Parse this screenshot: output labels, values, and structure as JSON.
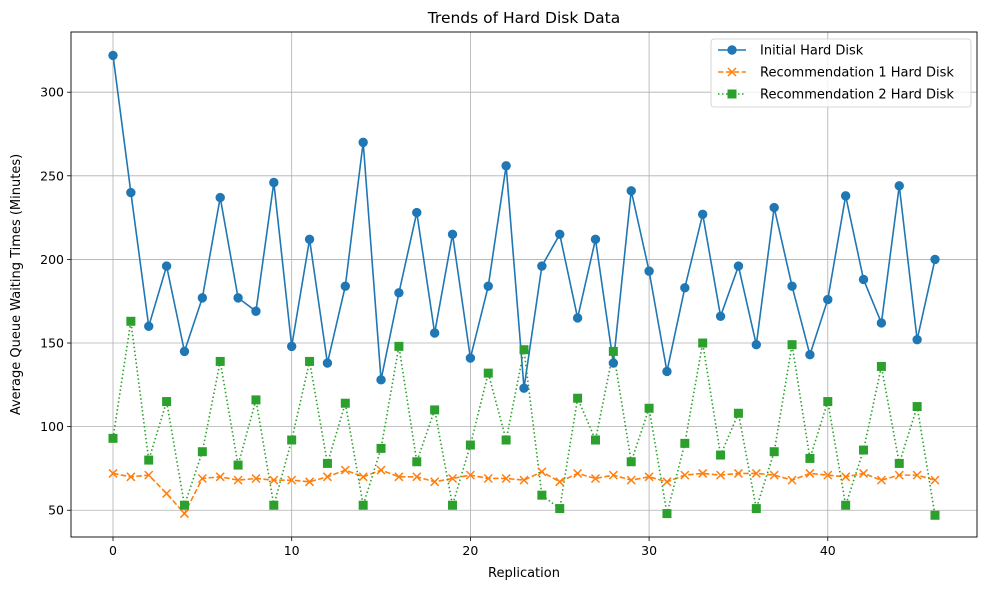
{
  "chart_data": {
    "type": "line",
    "title": "Trends of Hard Disk Data",
    "xlabel": "Replication",
    "ylabel": "Average Queue Waiting Times (Minutes)",
    "xlim": [
      -2.35,
      48.35
    ],
    "ylim": [
      34,
      336
    ],
    "xticks": [
      0,
      10,
      20,
      30,
      40
    ],
    "yticks": [
      50,
      100,
      150,
      200,
      250,
      300
    ],
    "grid": true,
    "legend_position": "top-right",
    "x": [
      0,
      1,
      2,
      3,
      4,
      5,
      6,
      7,
      8,
      9,
      10,
      11,
      12,
      13,
      14,
      15,
      16,
      17,
      18,
      19,
      20,
      21,
      22,
      23,
      24,
      25,
      26,
      27,
      28,
      29,
      30,
      31,
      32,
      33,
      34,
      35,
      36,
      37,
      38,
      39,
      40,
      41,
      42,
      43,
      44,
      45,
      46
    ],
    "series": [
      {
        "name": "Initial Hard Disk",
        "color": "#1f77b4",
        "linestyle": "solid",
        "marker": "circle",
        "values": [
          322,
          240,
          160,
          196,
          145,
          177,
          237,
          177,
          169,
          246,
          148,
          212,
          138,
          184,
          270,
          128,
          180,
          228,
          156,
          215,
          141,
          184,
          256,
          123,
          196,
          215,
          165,
          212,
          138,
          241,
          193,
          133,
          183,
          227,
          166,
          196,
          149,
          231,
          184,
          143,
          176,
          238,
          188,
          162,
          244,
          152,
          200
        ]
      },
      {
        "name": "Recommendation 1 Hard Disk",
        "color": "#ff7f0e",
        "linestyle": "dashed",
        "marker": "x",
        "values": [
          72,
          70,
          71,
          60,
          48,
          69,
          70,
          68,
          69,
          68,
          68,
          67,
          70,
          74,
          70,
          74,
          70,
          70,
          67,
          69,
          71,
          69,
          69,
          68,
          73,
          67,
          72,
          69,
          71,
          68,
          70,
          67,
          71,
          72,
          71,
          72,
          72,
          71,
          68,
          72,
          71,
          70,
          72,
          68,
          71,
          71,
          68
        ]
      },
      {
        "name": "Recommendation 2 Hard Disk",
        "color": "#2ca02c",
        "linestyle": "dotted",
        "marker": "square",
        "values": [
          93,
          163,
          80,
          115,
          53,
          85,
          139,
          77,
          116,
          53,
          92,
          139,
          78,
          114,
          53,
          87,
          148,
          79,
          110,
          53,
          89,
          132,
          92,
          146,
          59,
          51,
          117,
          92,
          145,
          79,
          111,
          48,
          90,
          150,
          83,
          108,
          51,
          85,
          149,
          81,
          115,
          53,
          86,
          136,
          78,
          112,
          47
        ]
      }
    ]
  }
}
